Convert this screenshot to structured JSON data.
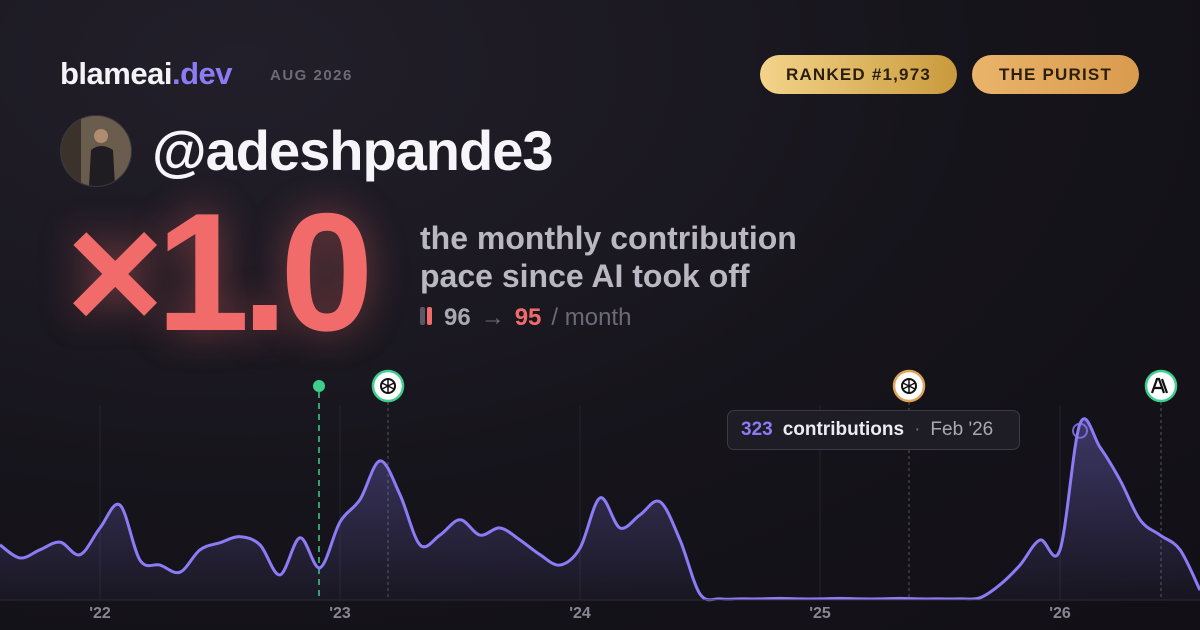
{
  "header": {
    "brand": "blameai",
    "brand_suffix": ".dev",
    "period": "AUG 2026",
    "badges": [
      "RANKED #1,973",
      "THE PURIST"
    ],
    "handle": "@adeshpande3"
  },
  "hero": {
    "multiplier": "×1.0",
    "tagline": [
      "the monthly contribution",
      "pace since AI took off"
    ],
    "before": "96",
    "arrow": "→",
    "after": "95",
    "unit": "/ month"
  },
  "tooltip": {
    "label": "contributions",
    "separator": "·",
    "date": "Feb '26"
  },
  "chart_data": {
    "type": "area",
    "color": "#8b7cf6",
    "categories": [
      null,
      null,
      null,
      null,
      null,
      "'22",
      null,
      null,
      null,
      null,
      null,
      null,
      null,
      null,
      null,
      null,
      null,
      "'23",
      null,
      null,
      null,
      null,
      null,
      null,
      null,
      null,
      null,
      null,
      null,
      "'24",
      null,
      null,
      null,
      null,
      null,
      null,
      null,
      null,
      null,
      null,
      null,
      "'25",
      null,
      null,
      null,
      null,
      null,
      null,
      null,
      null,
      null,
      null,
      null,
      "'26",
      null,
      null,
      null,
      null,
      null,
      null,
      null
    ],
    "values": [
      101,
      77,
      92,
      106,
      83,
      132,
      174,
      73,
      64,
      51,
      92,
      105,
      116,
      101,
      46,
      114,
      59,
      143,
      184,
      255,
      193,
      101,
      119,
      147,
      119,
      132,
      110,
      83,
      64,
      95,
      187,
      132,
      156,
      180,
      110,
      11,
      2,
      2,
      2,
      3,
      2,
      2,
      3,
      2,
      2,
      3,
      2,
      2,
      2,
      4,
      28,
      64,
      110,
      92,
      323,
      280,
      220,
      147,
      119,
      92,
      18
    ],
    "ylim": [
      0,
      350
    ]
  }
}
